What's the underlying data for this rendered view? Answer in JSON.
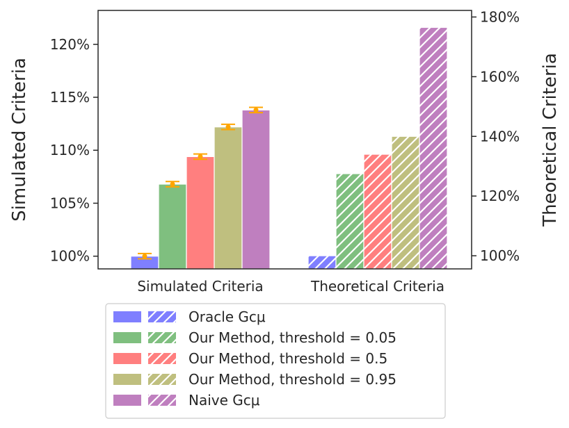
{
  "chart_data": {
    "type": "bar",
    "categories": [
      "Simulated Criteria",
      "Theoretical Criteria"
    ],
    "left_axis": {
      "label": "Simulated Criteria",
      "ylim": [
        98.8,
        123.2
      ],
      "ticks": [
        100,
        105,
        110,
        115,
        120
      ],
      "tick_labels": [
        "100%",
        "105%",
        "110%",
        "115%",
        "120%"
      ]
    },
    "right_axis": {
      "label": "Theoretical Criteria",
      "ylim": [
        95.6,
        182.2
      ],
      "ticks": [
        100,
        120,
        140,
        160,
        180
      ],
      "tick_labels": [
        "100%",
        "120%",
        "140%",
        "160%",
        "180%"
      ]
    },
    "series": [
      {
        "name": "Oracle Gcμ",
        "color": "#7f7fff",
        "simulated": 100.0,
        "simulated_err": 0.25,
        "theoretical": 100.0
      },
      {
        "name": "Our Method, threshold = 0.05",
        "color": "#7fbf7f",
        "simulated": 106.8,
        "simulated_err": 0.25,
        "theoretical": 127.5
      },
      {
        "name": "Our Method, threshold = 0.5",
        "color": "#ff7f7f",
        "simulated": 109.4,
        "simulated_err": 0.25,
        "theoretical": 134.0
      },
      {
        "name": "Our Method, threshold = 0.95",
        "color": "#bfbf7f",
        "simulated": 112.2,
        "simulated_err": 0.25,
        "theoretical": 140.0
      },
      {
        "name": "Naive Gcμ",
        "color": "#bf7fbf",
        "simulated": 113.8,
        "simulated_err": 0.25,
        "theoretical": 176.5
      }
    ],
    "errorbar_color": "#ffa500",
    "legend_position": "bottom"
  }
}
